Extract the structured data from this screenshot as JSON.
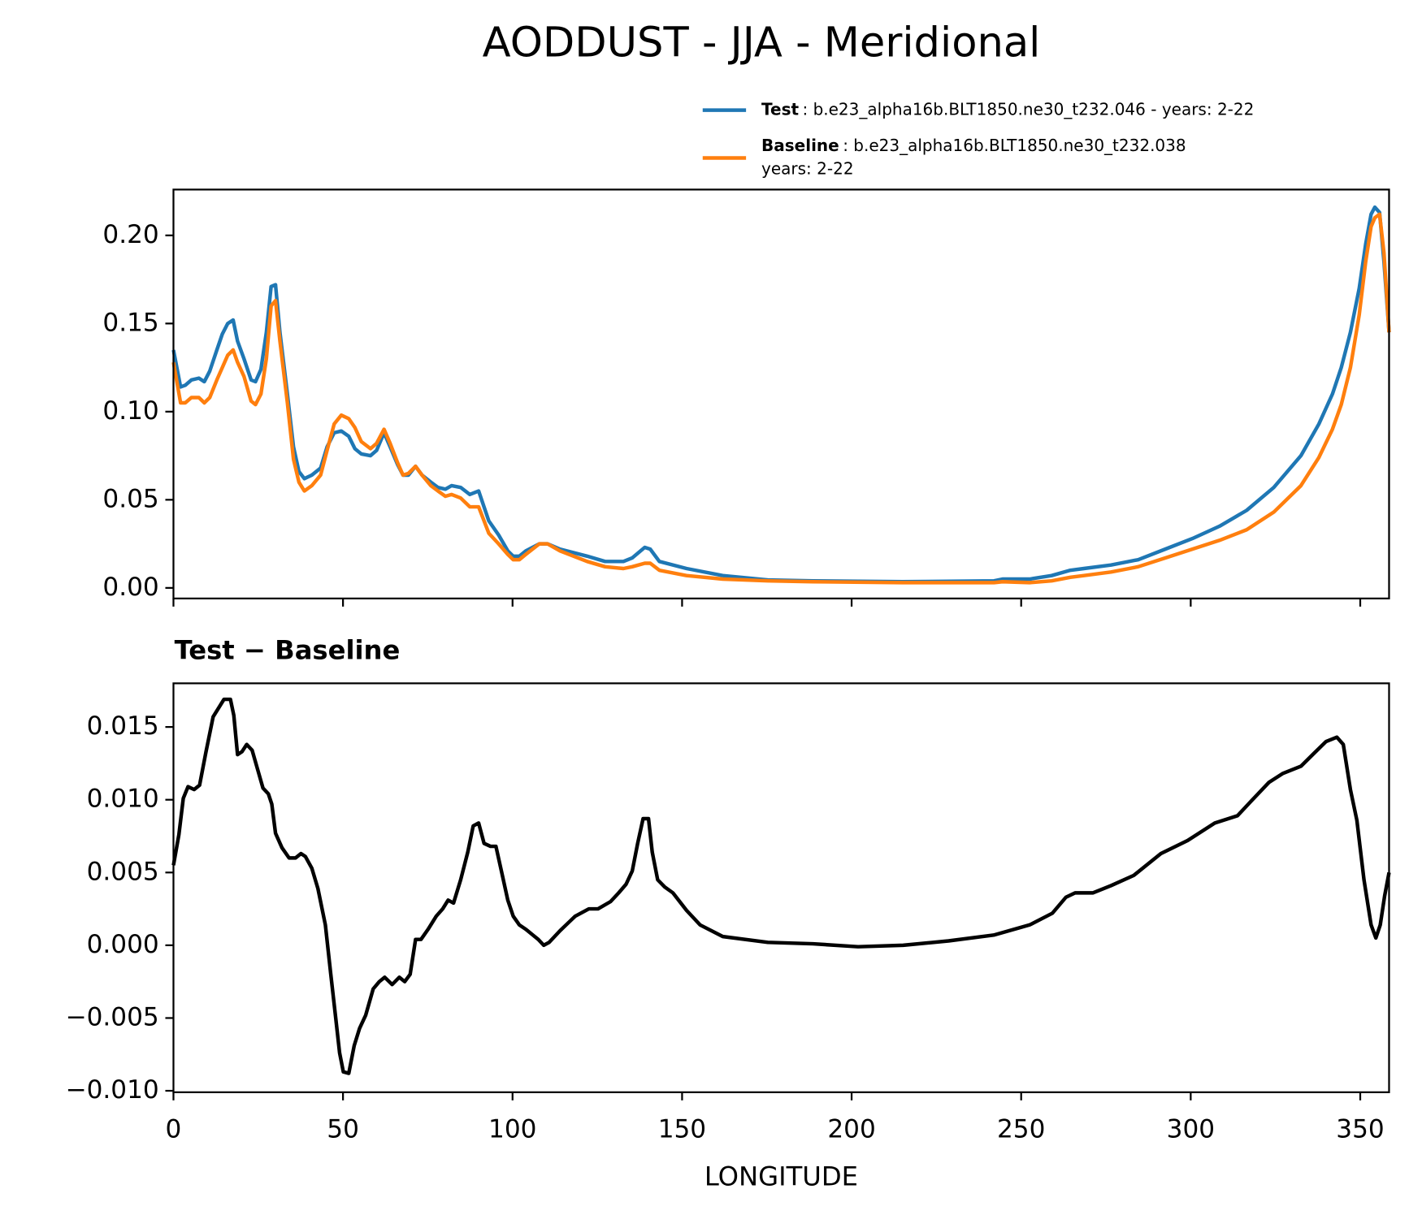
{
  "chart_data": [
    {
      "type": "line",
      "title": "AODDUST - JJA - Meridional",
      "xlim": [
        0,
        358.5
      ],
      "xticks": [
        0,
        50,
        100,
        150,
        200,
        250,
        300,
        350
      ],
      "ylim": [
        -0.006,
        0.226
      ],
      "yticks": [
        {
          "value": 0,
          "label": "0.00"
        },
        {
          "value": 0.05,
          "label": "0.05"
        },
        {
          "value": 0.1,
          "label": "0.10"
        },
        {
          "value": 0.15,
          "label": "0.15"
        },
        {
          "value": 0.2,
          "label": "0.20"
        }
      ],
      "legend_descriptions": [
        [
          ": b.e23_alpha16b.BLT1850.ne30_t232.046 - years: 2-22"
        ],
        [
          ": b.e23_alpha16b.BLT1850.ne30_t232.038",
          "years: 2-22"
        ]
      ],
      "x": [
        0,
        2.1,
        3.5,
        5.3,
        7.5,
        9.1,
        10.7,
        12.8,
        14.4,
        16,
        17.6,
        18.9,
        20.8,
        22.9,
        24.2,
        25.8,
        27.4,
        28.8,
        30.1,
        31.4,
        33.6,
        35.4,
        37,
        38.6,
        40.8,
        43.4,
        45.3,
        47.4,
        49.5,
        51.7,
        53.5,
        55.4,
        58.1,
        59.9,
        62.1,
        63.9,
        66.1,
        67.7,
        69.3,
        71.4,
        73.3,
        75.9,
        78,
        80.2,
        82,
        84.7,
        87.4,
        90,
        93,
        95.9,
        98.6,
        100.2,
        102,
        103.9,
        107.9,
        110.3,
        114,
        122,
        127.3,
        132.7,
        135.3,
        139,
        140.6,
        143.3,
        151.3,
        162,
        175.3,
        188.6,
        215,
        242,
        244.5,
        252.5,
        259,
        264.5,
        268.5,
        276.5,
        284.5,
        292.5,
        300.5,
        308.5,
        316.5,
        324.5,
        332.5,
        337.8,
        341.8,
        344.4,
        347.1,
        349.7,
        351.6,
        353.2,
        354.3,
        355.7,
        357,
        358.5
      ],
      "series": [
        {
          "name": "Test",
          "color": "#1f77b4",
          "values": [
            0.135,
            0.114,
            0.115,
            0.118,
            0.119,
            0.117,
            0.123,
            0.135,
            0.144,
            0.15,
            0.152,
            0.14,
            0.13,
            0.118,
            0.117,
            0.124,
            0.145,
            0.171,
            0.172,
            0.145,
            0.11,
            0.08,
            0.066,
            0.062,
            0.064,
            0.068,
            0.08,
            0.088,
            0.089,
            0.086,
            0.079,
            0.076,
            0.075,
            0.078,
            0.088,
            0.08,
            0.07,
            0.064,
            0.064,
            0.069,
            0.064,
            0.06,
            0.057,
            0.056,
            0.058,
            0.057,
            0.053,
            0.055,
            0.038,
            0.03,
            0.021,
            0.018,
            0.018,
            0.021,
            0.025,
            0.025,
            0.022,
            0.018,
            0.015,
            0.015,
            0.017,
            0.023,
            0.022,
            0.015,
            0.011,
            0.007,
            0.0045,
            0.004,
            0.0035,
            0.004,
            0.005,
            0.005,
            0.007,
            0.01,
            0.011,
            0.013,
            0.016,
            0.022,
            0.028,
            0.035,
            0.044,
            0.057,
            0.075,
            0.093,
            0.11,
            0.125,
            0.145,
            0.17,
            0.195,
            0.212,
            0.216,
            0.213,
            0.185,
            0.145
          ]
        },
        {
          "name": "Baseline",
          "color": "#ff7f0e",
          "values": [
            0.128,
            0.105,
            0.105,
            0.108,
            0.108,
            0.105,
            0.108,
            0.118,
            0.125,
            0.132,
            0.135,
            0.128,
            0.12,
            0.106,
            0.104,
            0.11,
            0.13,
            0.16,
            0.163,
            0.14,
            0.105,
            0.073,
            0.06,
            0.055,
            0.058,
            0.064,
            0.078,
            0.093,
            0.098,
            0.096,
            0.091,
            0.083,
            0.079,
            0.082,
            0.09,
            0.082,
            0.071,
            0.064,
            0.065,
            0.069,
            0.064,
            0.058,
            0.055,
            0.052,
            0.053,
            0.051,
            0.046,
            0.046,
            0.031,
            0.025,
            0.019,
            0.016,
            0.016,
            0.019,
            0.025,
            0.025,
            0.021,
            0.015,
            0.012,
            0.011,
            0.012,
            0.014,
            0.014,
            0.01,
            0.007,
            0.005,
            0.004,
            0.0035,
            0.003,
            0.003,
            0.0035,
            0.003,
            0.004,
            0.006,
            0.007,
            0.009,
            0.012,
            0.017,
            0.022,
            0.027,
            0.033,
            0.043,
            0.058,
            0.074,
            0.09,
            0.104,
            0.125,
            0.155,
            0.185,
            0.205,
            0.21,
            0.212,
            0.19,
            0.145
          ]
        }
      ]
    },
    {
      "type": "line",
      "title": "Test − Baseline",
      "xlabel": "LONGITUDE",
      "color": "#000000",
      "xlim": [
        0,
        358.5
      ],
      "xticks": [
        0,
        50,
        100,
        150,
        200,
        250,
        300,
        350
      ],
      "ylim": [
        -0.0101,
        0.018
      ],
      "yticks": [
        {
          "value": -0.01,
          "label": "−0.010"
        },
        {
          "value": -0.005,
          "label": "−0.005"
        },
        {
          "value": 0,
          "label": "0.000"
        },
        {
          "value": 0.005,
          "label": "0.005"
        },
        {
          "value": 0.01,
          "label": "0.010"
        },
        {
          "value": 0.015,
          "label": "0.015"
        }
      ],
      "x": [
        0,
        1.6,
        2.9,
        4.3,
        6.1,
        7.7,
        9.6,
        11.7,
        13.3,
        14.9,
        16.8,
        17.8,
        18.9,
        20.2,
        21.6,
        23.2,
        24.8,
        26.4,
        28,
        29,
        30.1,
        32,
        34.1,
        36,
        37.6,
        38.9,
        40.8,
        42.6,
        44.8,
        46.4,
        47.9,
        49,
        50.1,
        51.7,
        53.3,
        54.9,
        56.7,
        58.9,
        60.7,
        62.3,
        64.5,
        66.6,
        68.2,
        69.8,
        71.4,
        73,
        75.1,
        77.5,
        79.4,
        81,
        82.6,
        84.7,
        86.8,
        88.4,
        90,
        91.6,
        93.5,
        95.1,
        97,
        98.6,
        100.2,
        102,
        103.9,
        106,
        107.6,
        109.2,
        110.8,
        114,
        116.7,
        118.5,
        122.5,
        125.2,
        128.9,
        131.3,
        133.5,
        135.3,
        136.9,
        138.5,
        140.1,
        141.2,
        142.8,
        144.9,
        147.3,
        151.3,
        155.3,
        162,
        175.3,
        188.6,
        201.9,
        215.2,
        228.6,
        241.9,
        252.5,
        259.2,
        263.2,
        265.9,
        271.2,
        276.5,
        283.2,
        291.2,
        299.1,
        307.1,
        313.8,
        317.8,
        323.1,
        327.1,
        332.5,
        336.4,
        339.9,
        343.1,
        345,
        347.1,
        349,
        351.1,
        353.2,
        354.6,
        355.9,
        357.2,
        358.5
      ],
      "values": [
        0.0055,
        0.0076,
        0.0101,
        0.0109,
        0.0107,
        0.011,
        0.0133,
        0.0157,
        0.0163,
        0.0169,
        0.0169,
        0.0158,
        0.0131,
        0.0133,
        0.0138,
        0.0134,
        0.0121,
        0.0108,
        0.0104,
        0.0097,
        0.0077,
        0.0067,
        0.006,
        0.006,
        0.0063,
        0.0061,
        0.0053,
        0.0039,
        0.0014,
        -0.002,
        -0.0051,
        -0.0074,
        -0.0087,
        -0.0088,
        -0.0069,
        -0.0057,
        -0.0048,
        -0.003,
        -0.0025,
        -0.0022,
        -0.0027,
        -0.0022,
        -0.0025,
        -0.002,
        0.0004,
        0.0004,
        0.0011,
        0.002,
        0.0025,
        0.0031,
        0.0029,
        0.0045,
        0.0064,
        0.0082,
        0.0084,
        0.007,
        0.0068,
        0.0068,
        0.0048,
        0.0031,
        0.002,
        0.0014,
        0.0011,
        0.0007,
        0.0004,
        0,
        0.0002,
        0.001,
        0.0016,
        0.002,
        0.0025,
        0.0025,
        0.003,
        0.0036,
        0.0042,
        0.0051,
        0.007,
        0.0087,
        0.0087,
        0.0064,
        0.0045,
        0.004,
        0.0036,
        0.0024,
        0.0014,
        0.0006,
        0.0002,
        0.0001,
        -0.0001,
        0,
        0.0003,
        0.0007,
        0.0014,
        0.0022,
        0.0033,
        0.0036,
        0.0036,
        0.0041,
        0.0048,
        0.0063,
        0.0072,
        0.0084,
        0.0089,
        0.0099,
        0.0112,
        0.0118,
        0.0123,
        0.0132,
        0.014,
        0.0143,
        0.0138,
        0.0107,
        0.0086,
        0.0045,
        0.0014,
        0.0005,
        0.0014,
        0.0034,
        0.005
      ]
    }
  ]
}
